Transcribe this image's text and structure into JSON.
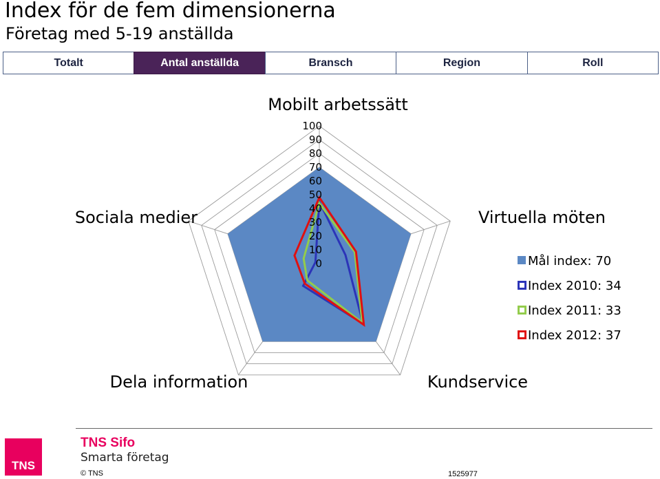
{
  "header": {
    "title": "Index för de fem dimensionerna",
    "subtitle": "Företag med 5-19 anställda"
  },
  "tabs": [
    {
      "label": "Totalt",
      "active": false
    },
    {
      "label": "Antal anställda",
      "active": true
    },
    {
      "label": "Bransch",
      "active": false
    },
    {
      "label": "Region",
      "active": false
    },
    {
      "label": "Roll",
      "active": false
    }
  ],
  "chart_data": {
    "type": "radar",
    "categories": [
      "Mobilt arbetssätt",
      "Virtuella möten",
      "Kundservice",
      "Dela information",
      "Sociala medier"
    ],
    "rlim": [
      0,
      100
    ],
    "ticks": [
      "100",
      "90",
      "80",
      "70",
      "60",
      "50",
      "40",
      "30",
      "20",
      "10",
      "0"
    ],
    "series": [
      {
        "name": "Mål index: 70",
        "style": "filled",
        "color": "#5b88c4",
        "values": [
          70,
          70,
          70,
          70,
          70
        ]
      },
      {
        "name": "Index 2010: 34",
        "style": "line",
        "color": "#2c34b8",
        "values": [
          45,
          20,
          54,
          20,
          3
        ]
      },
      {
        "name": "Index 2011: 33",
        "style": "line",
        "color": "#93cc4c",
        "values": [
          44,
          27,
          53,
          15,
          12
        ]
      },
      {
        "name": "Index 2012: 37",
        "style": "line",
        "color": "#e01010",
        "values": [
          48,
          28,
          55,
          18,
          19
        ]
      }
    ],
    "legend": "right",
    "grid": true
  },
  "footer": {
    "brand": "TNS Sifo",
    "brand_sub": "Smarta företag",
    "logo_text": "TNS",
    "copyright": "© TNS",
    "doc_id": "1525977"
  }
}
